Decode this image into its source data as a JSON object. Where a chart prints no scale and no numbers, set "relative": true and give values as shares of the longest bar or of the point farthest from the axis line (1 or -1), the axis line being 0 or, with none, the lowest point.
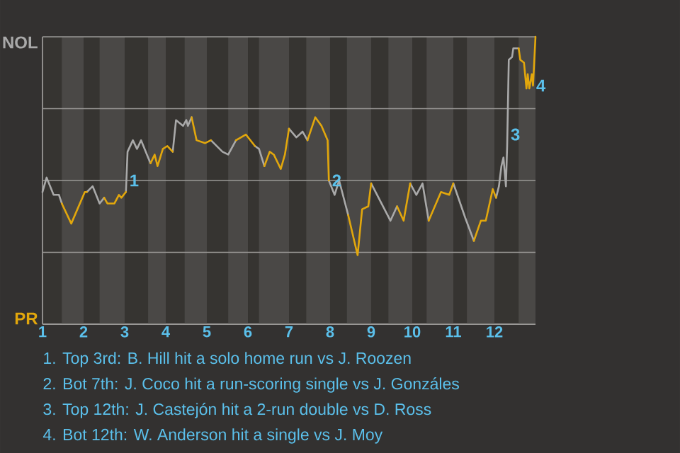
{
  "chart_data": {
    "type": "line",
    "relative": true,
    "x": [
      1.0,
      1.1,
      1.27,
      1.4,
      1.47,
      1.7,
      2.03,
      2.08,
      2.22,
      2.39,
      2.5,
      2.58,
      2.75,
      2.86,
      2.92,
      3.03,
      3.07,
      3.2,
      3.3,
      3.4,
      3.57,
      3.63,
      3.73,
      3.8,
      3.93,
      4.04,
      4.17,
      4.25,
      4.42,
      4.5,
      4.54,
      4.63,
      4.75,
      4.96,
      5.1,
      5.38,
      5.52,
      5.71,
      5.95,
      6.17,
      6.27,
      6.4,
      6.53,
      6.63,
      6.8,
      6.9,
      7.0,
      7.18,
      7.33,
      7.45,
      7.64,
      7.79,
      7.94,
      7.97,
      8.11,
      8.22,
      8.44,
      8.67,
      8.78,
      8.93,
      9.0,
      9.47,
      9.63,
      9.79,
      9.95,
      10.1,
      10.25,
      10.4,
      10.7,
      10.9,
      11.0,
      11.29,
      11.5,
      11.67,
      11.79,
      11.96,
      12.04,
      12.11,
      12.17,
      12.22,
      12.28,
      12.31,
      12.33,
      12.35,
      12.43,
      12.46,
      12.59,
      12.63,
      12.72,
      12.78,
      12.81,
      12.85,
      12.91,
      12.94,
      13.0
    ],
    "series": [
      {
        "name": "NOL",
        "color": "#a9a9a9",
        "values": [
          0.46,
          0.51,
          0.45,
          0.45,
          0.42,
          null,
          null,
          0.46,
          0.48,
          0.42,
          0.44,
          null,
          null,
          null,
          null,
          0.46,
          0.6,
          0.64,
          0.61,
          0.64,
          0.58,
          0.56,
          null,
          null,
          null,
          null,
          0.6,
          0.71,
          0.69,
          0.71,
          0.69,
          0.72,
          null,
          null,
          0.64,
          0.6,
          0.59,
          0.64,
          null,
          0.62,
          0.61,
          0.55,
          null,
          null,
          null,
          null,
          0.68,
          0.65,
          0.67,
          0.64,
          null,
          null,
          null,
          0.5,
          0.45,
          0.5,
          0.38,
          null,
          null,
          null,
          0.49,
          0.36,
          0.41,
          null,
          0.49,
          0.45,
          0.49,
          0.36,
          null,
          null,
          0.49,
          0.37,
          0.29,
          null,
          null,
          null,
          0.44,
          0.48,
          0.55,
          0.58,
          0.48,
          0.62,
          0.77,
          0.92,
          0.93,
          0.96,
          0.96,
          null,
          null,
          null,
          null,
          null,
          null,
          null,
          null
        ]
      },
      {
        "name": "PR",
        "color": "#e2a70c",
        "values": [
          null,
          null,
          null,
          null,
          0.42,
          0.35,
          0.46,
          0.46,
          null,
          null,
          0.44,
          0.42,
          0.42,
          0.45,
          0.44,
          0.46,
          null,
          null,
          null,
          null,
          null,
          0.56,
          0.59,
          0.55,
          0.61,
          0.62,
          0.6,
          null,
          null,
          null,
          null,
          0.72,
          0.64,
          0.63,
          0.64,
          null,
          null,
          0.64,
          0.66,
          0.62,
          null,
          0.55,
          0.6,
          0.59,
          0.54,
          0.59,
          0.68,
          null,
          null,
          0.64,
          0.72,
          0.69,
          0.64,
          0.5,
          null,
          null,
          0.38,
          0.24,
          0.4,
          0.41,
          0.49,
          null,
          0.41,
          0.36,
          0.49,
          null,
          null,
          0.36,
          0.46,
          0.45,
          0.49,
          null,
          0.29,
          0.36,
          0.36,
          0.47,
          0.44,
          null,
          null,
          null,
          null,
          null,
          null,
          null,
          null,
          null,
          0.96,
          0.92,
          0.91,
          0.82,
          0.87,
          0.82,
          0.87,
          0.83,
          1.0
        ]
      }
    ],
    "xlim": [
      1,
      13
    ],
    "xticks": [
      1,
      2,
      3,
      4,
      5,
      6,
      7,
      8,
      9,
      10,
      11,
      12
    ],
    "grid": "y",
    "legend": "left",
    "bands": [
      {
        "axis": "x",
        "from": 1.47,
        "to": 2,
        "color": "#4a4846"
      },
      {
        "axis": "x",
        "from": 2.39,
        "to": 3,
        "color": "#4a4846"
      },
      {
        "axis": "x",
        "from": 3.57,
        "to": 4,
        "color": "#4a4846"
      },
      {
        "axis": "x",
        "from": 4.46,
        "to": 5,
        "color": "#4a4846"
      },
      {
        "axis": "x",
        "from": 5.52,
        "to": 6,
        "color": "#4a4846"
      },
      {
        "axis": "x",
        "from": 6.27,
        "to": 7,
        "color": "#4a4846"
      },
      {
        "axis": "x",
        "from": 7.42,
        "to": 8,
        "color": "#4a4846"
      },
      {
        "axis": "x",
        "from": 8.41,
        "to": 9,
        "color": "#4a4846"
      },
      {
        "axis": "x",
        "from": 9.42,
        "to": 10,
        "color": "#4a4846"
      },
      {
        "axis": "x",
        "from": 10.35,
        "to": 11,
        "color": "#4a4846"
      },
      {
        "axis": "x",
        "from": 11.33,
        "to": 12,
        "color": "#4a4846"
      },
      {
        "axis": "x",
        "from": 12.59,
        "to": 13,
        "color": "#4a4846"
      }
    ],
    "annotations": [
      {
        "text": "1",
        "x": 3.04,
        "y": 0.5
      },
      {
        "text": "2",
        "x": 7.97,
        "y": 0.5
      },
      {
        "text": "3",
        "x": 12.32,
        "y": 0.66
      },
      {
        "text": "4",
        "x": 12.94,
        "y": 0.83
      },
      "1. Top 3rd: B. Hill hit a solo home run vs J. Roozen",
      "2. Bot 7th: J. Coco hit a run-scoring single vs J. Gonzáles",
      "3. Top 12th: J. Castejón hit a 2-run double vs D. Ross",
      "4. Bot 12th: W. Anderson hit a single vs J. Moy"
    ]
  }
}
